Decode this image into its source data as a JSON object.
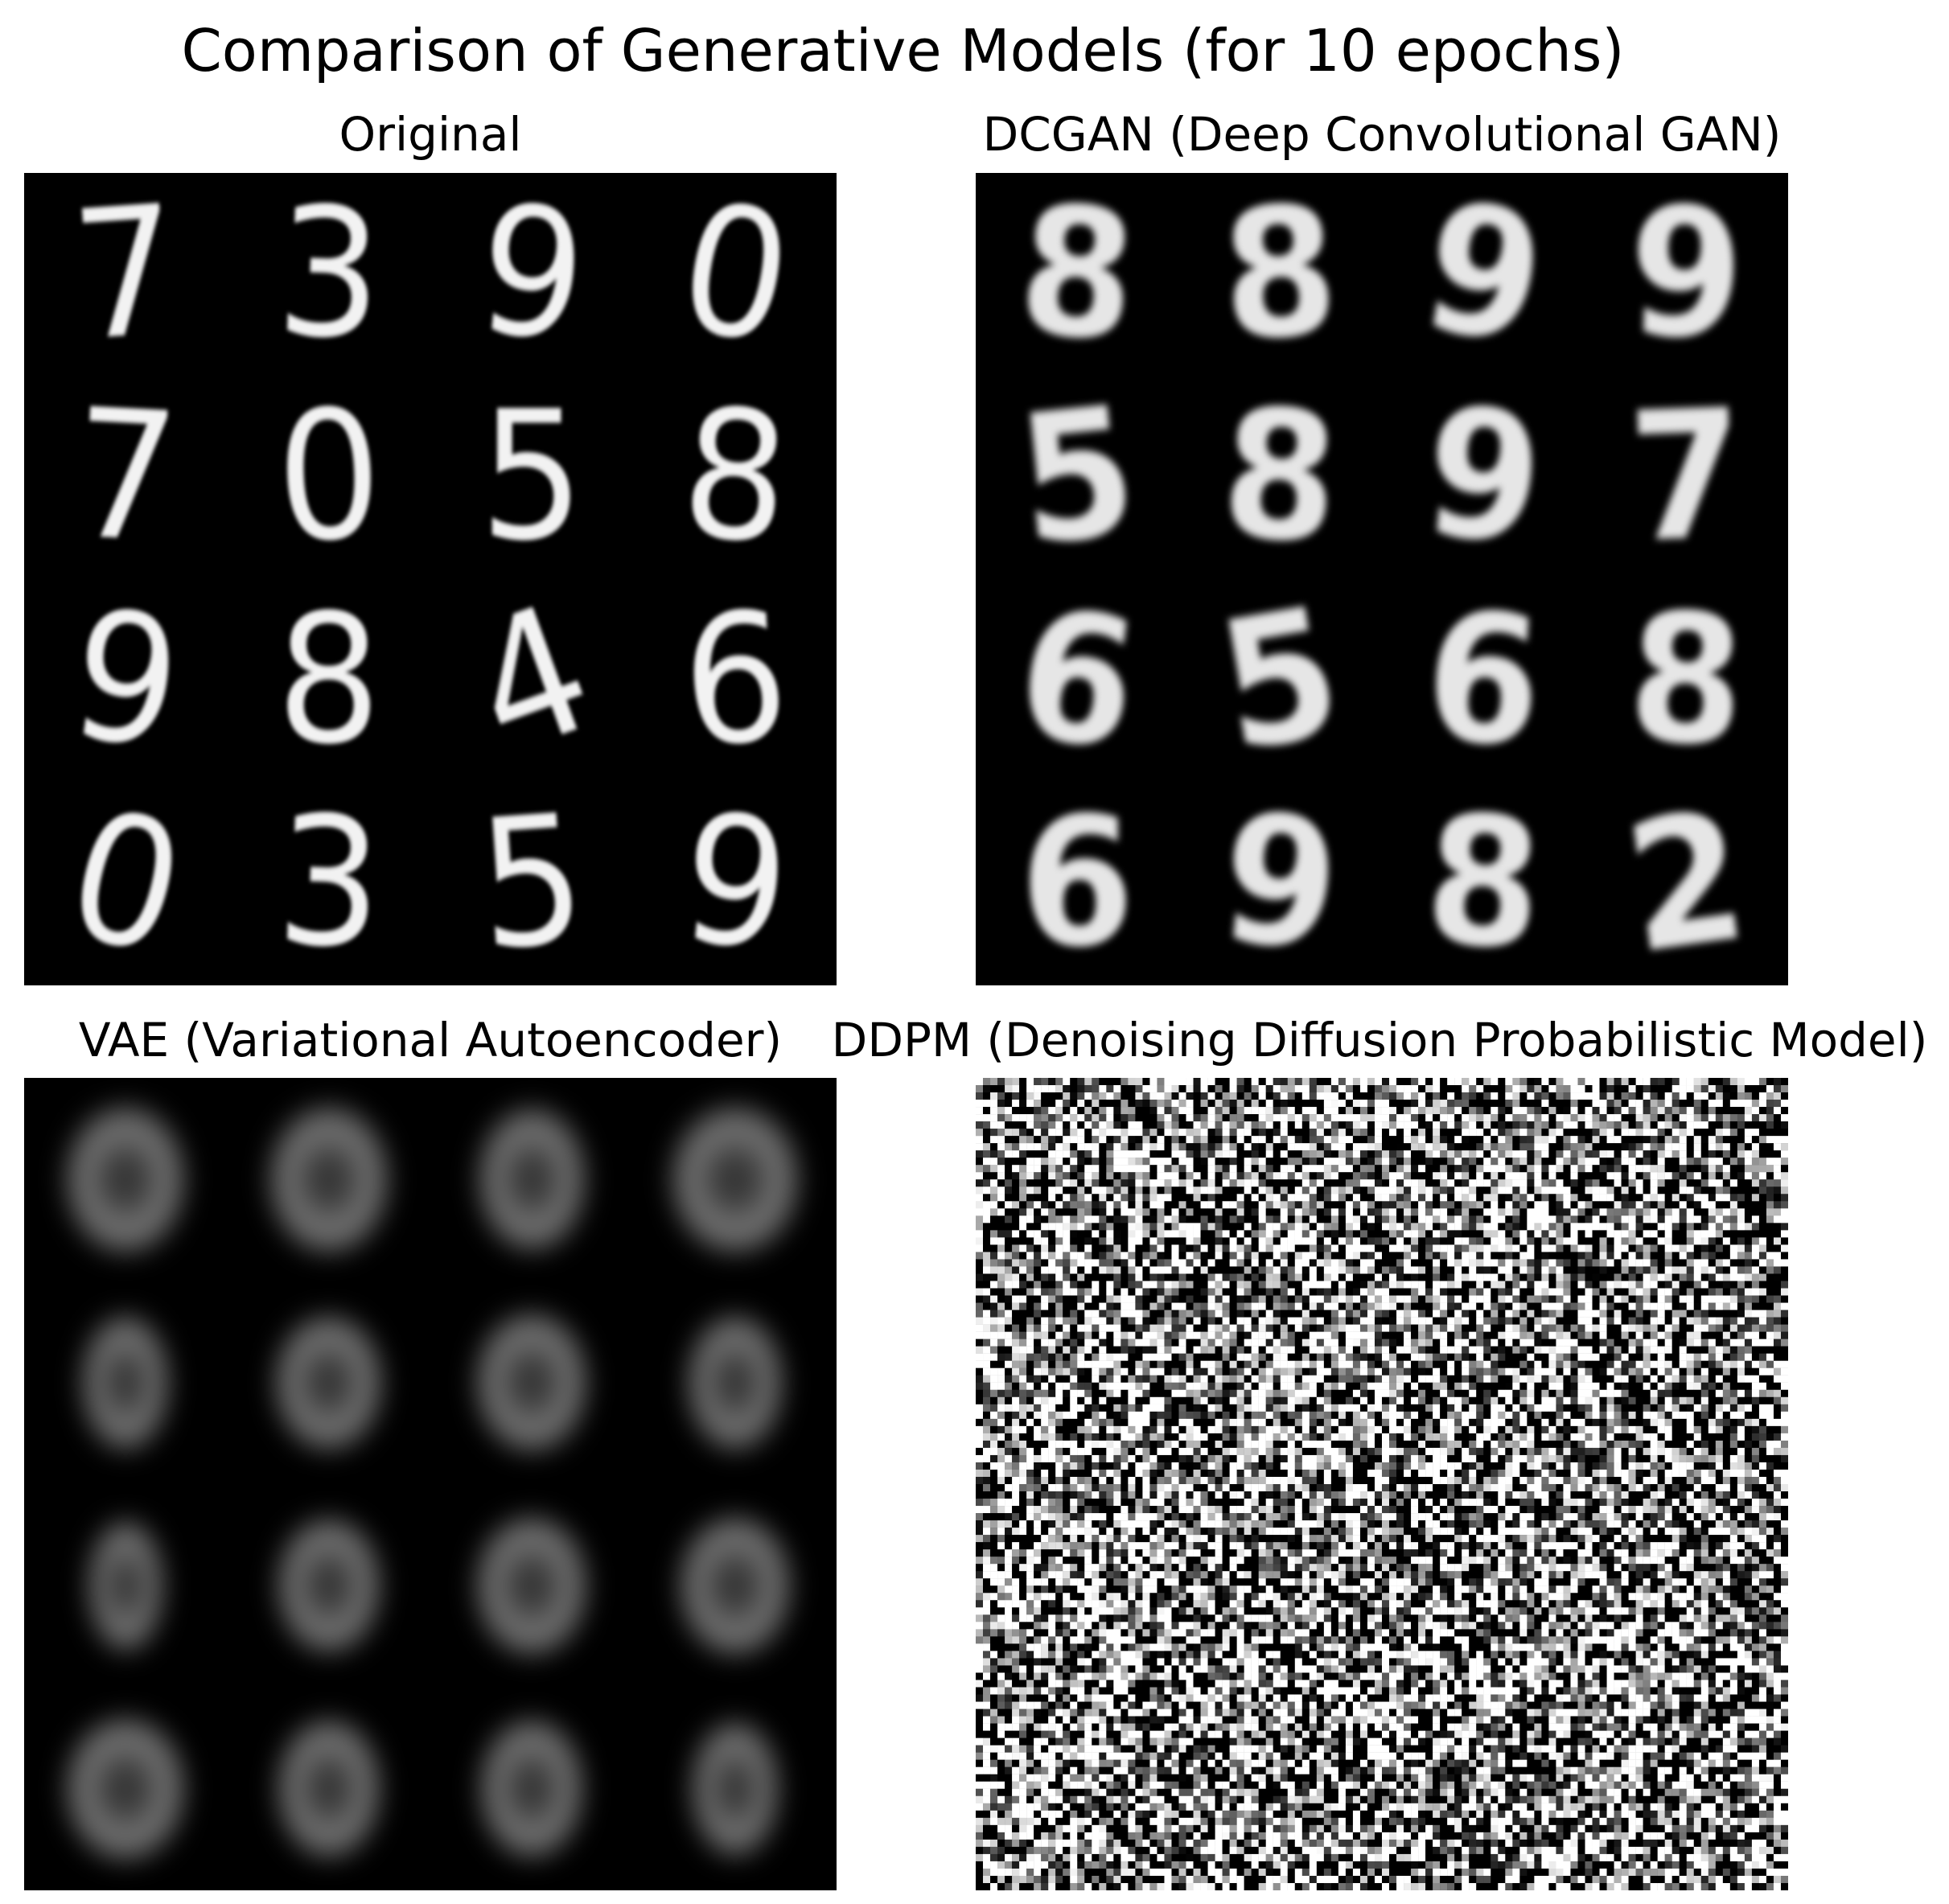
{
  "figure": {
    "title": "Comparison of Generative Models (for 10 epochs)"
  },
  "panels": [
    {
      "id": "original",
      "title": "Original",
      "grid": [
        "7",
        "3",
        "9",
        "0",
        "7",
        "0",
        "5",
        "8",
        "9",
        "8",
        "4",
        "6",
        "0",
        "3",
        "5",
        "9"
      ]
    },
    {
      "id": "dcgan",
      "title": "DCGAN (Deep Convolutional GAN)",
      "grid": [
        "8",
        "8",
        "9",
        "9",
        "5",
        "8",
        "9",
        "7",
        "6",
        "5",
        "6",
        "8",
        "6",
        "9",
        "8",
        "2"
      ]
    },
    {
      "id": "vae",
      "title": "VAE (Variational Autoencoder)",
      "grid_size": [
        4,
        4
      ]
    },
    {
      "id": "ddpm",
      "title": "DDPM (Denoising Diffusion Probabilistic Model)",
      "noise_resolution": [
        112,
        112
      ]
    }
  ]
}
